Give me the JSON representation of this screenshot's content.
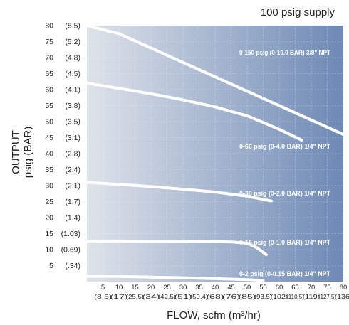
{
  "chart_data": {
    "type": "line",
    "title": "100 psig supply",
    "xlabel": "FLOW, scfm (m³/hr)",
    "ylabel_line1": "OUTPUT",
    "ylabel_line2": "psig (BAR)",
    "xlim": [
      0,
      80
    ],
    "ylim": [
      0,
      80
    ],
    "x_ticks": [
      {
        "value": 5,
        "primary": "5",
        "secondary": "(8.5)"
      },
      {
        "value": 10,
        "primary": "10",
        "secondary": "(17)"
      },
      {
        "value": 15,
        "primary": "15",
        "secondary": "(25.5)"
      },
      {
        "value": 20,
        "primary": "20",
        "secondary": "(34)"
      },
      {
        "value": 25,
        "primary": "25",
        "secondary": "(42.5)"
      },
      {
        "value": 30,
        "primary": "30",
        "secondary": "(51)"
      },
      {
        "value": 35,
        "primary": "35",
        "secondary": "(59.4)"
      },
      {
        "value": 40,
        "primary": "40",
        "secondary": "(68)"
      },
      {
        "value": 45,
        "primary": "45",
        "secondary": "(76)"
      },
      {
        "value": 50,
        "primary": "50",
        "secondary": "(85)"
      },
      {
        "value": 55,
        "primary": "55",
        "secondary": "(93.5)"
      },
      {
        "value": 60,
        "primary": "60",
        "secondary": "(102)"
      },
      {
        "value": 65,
        "primary": "65",
        "secondary": "(110.5)"
      },
      {
        "value": 70,
        "primary": "70",
        "secondary": "(119)"
      },
      {
        "value": 75,
        "primary": "75",
        "secondary": "(127.5)"
      },
      {
        "value": 80,
        "primary": "80",
        "secondary": "(136)"
      }
    ],
    "y_ticks": [
      {
        "value": 80,
        "primary": "80",
        "secondary": "(5.5)"
      },
      {
        "value": 75,
        "primary": "75",
        "secondary": "(5.2)"
      },
      {
        "value": 70,
        "primary": "70",
        "secondary": "(4.8)"
      },
      {
        "value": 65,
        "primary": "65",
        "secondary": "(4.5)"
      },
      {
        "value": 60,
        "primary": "60",
        "secondary": "(4.1)"
      },
      {
        "value": 55,
        "primary": "55",
        "secondary": "(3.8)"
      },
      {
        "value": 50,
        "primary": "50",
        "secondary": "(3.5)"
      },
      {
        "value": 45,
        "primary": "45",
        "secondary": "(3.1)"
      },
      {
        "value": 40,
        "primary": "40",
        "secondary": "(2.8)"
      },
      {
        "value": 35,
        "primary": "35",
        "secondary": "(2.4)"
      },
      {
        "value": 30,
        "primary": "30",
        "secondary": "(2.1)"
      },
      {
        "value": 25,
        "primary": "25",
        "secondary": "(1.7)"
      },
      {
        "value": 20,
        "primary": "20",
        "secondary": "(1.4)"
      },
      {
        "value": 15,
        "primary": "15",
        "secondary": "(1.03)"
      },
      {
        "value": 10,
        "primary": "10",
        "secondary": "(0.69)"
      },
      {
        "value": 5,
        "primary": "5",
        "secondary": "(.34)"
      }
    ],
    "series": [
      {
        "name": "0-150 psig (0-10.0 BAR) 3/8\" NPT",
        "x": [
          0,
          10,
          20,
          30,
          40,
          50,
          60,
          70,
          80
        ],
        "y": [
          82,
          77.5,
          73,
          68.5,
          64,
          59.5,
          55,
          50.5,
          46
        ]
      },
      {
        "name": "0-60 psig (0-4.0 BAR) 1/4\" NPT",
        "x": [
          0,
          10,
          20,
          30,
          40,
          50,
          60,
          67
        ],
        "y": [
          62,
          60.4,
          58.7,
          56.8,
          54.6,
          51.8,
          47.6,
          44.2
        ]
      },
      {
        "name": "0-30 psig (0-2.0 BAR) 1/4\" NPT",
        "x": [
          0,
          10,
          20,
          30,
          40,
          50,
          57.5
        ],
        "y": [
          31,
          30.4,
          29.7,
          28.9,
          28,
          26.7,
          25.2
        ]
      },
      {
        "name": "0-15 psig (0-1.0 BAR) 1/4\" NPT",
        "x": [
          0,
          10,
          20,
          30,
          40,
          45,
          50,
          53,
          56
        ],
        "y": [
          12.7,
          12.7,
          12.6,
          12.6,
          12.5,
          12.4,
          12,
          10.6,
          8.4
        ]
      },
      {
        "name": "0-2 psig (0-0.15 BAR) 1/4\" NPT",
        "x": [
          0,
          10,
          20,
          30,
          40,
          50,
          55
        ],
        "y": [
          1.7,
          1.6,
          1.4,
          1.2,
          0.9,
          0.6,
          0.4
        ]
      }
    ],
    "grid": true,
    "background_gradient": [
      "#dfe3ea",
      "#6d89b5"
    ],
    "line_color": "#ffffff"
  }
}
